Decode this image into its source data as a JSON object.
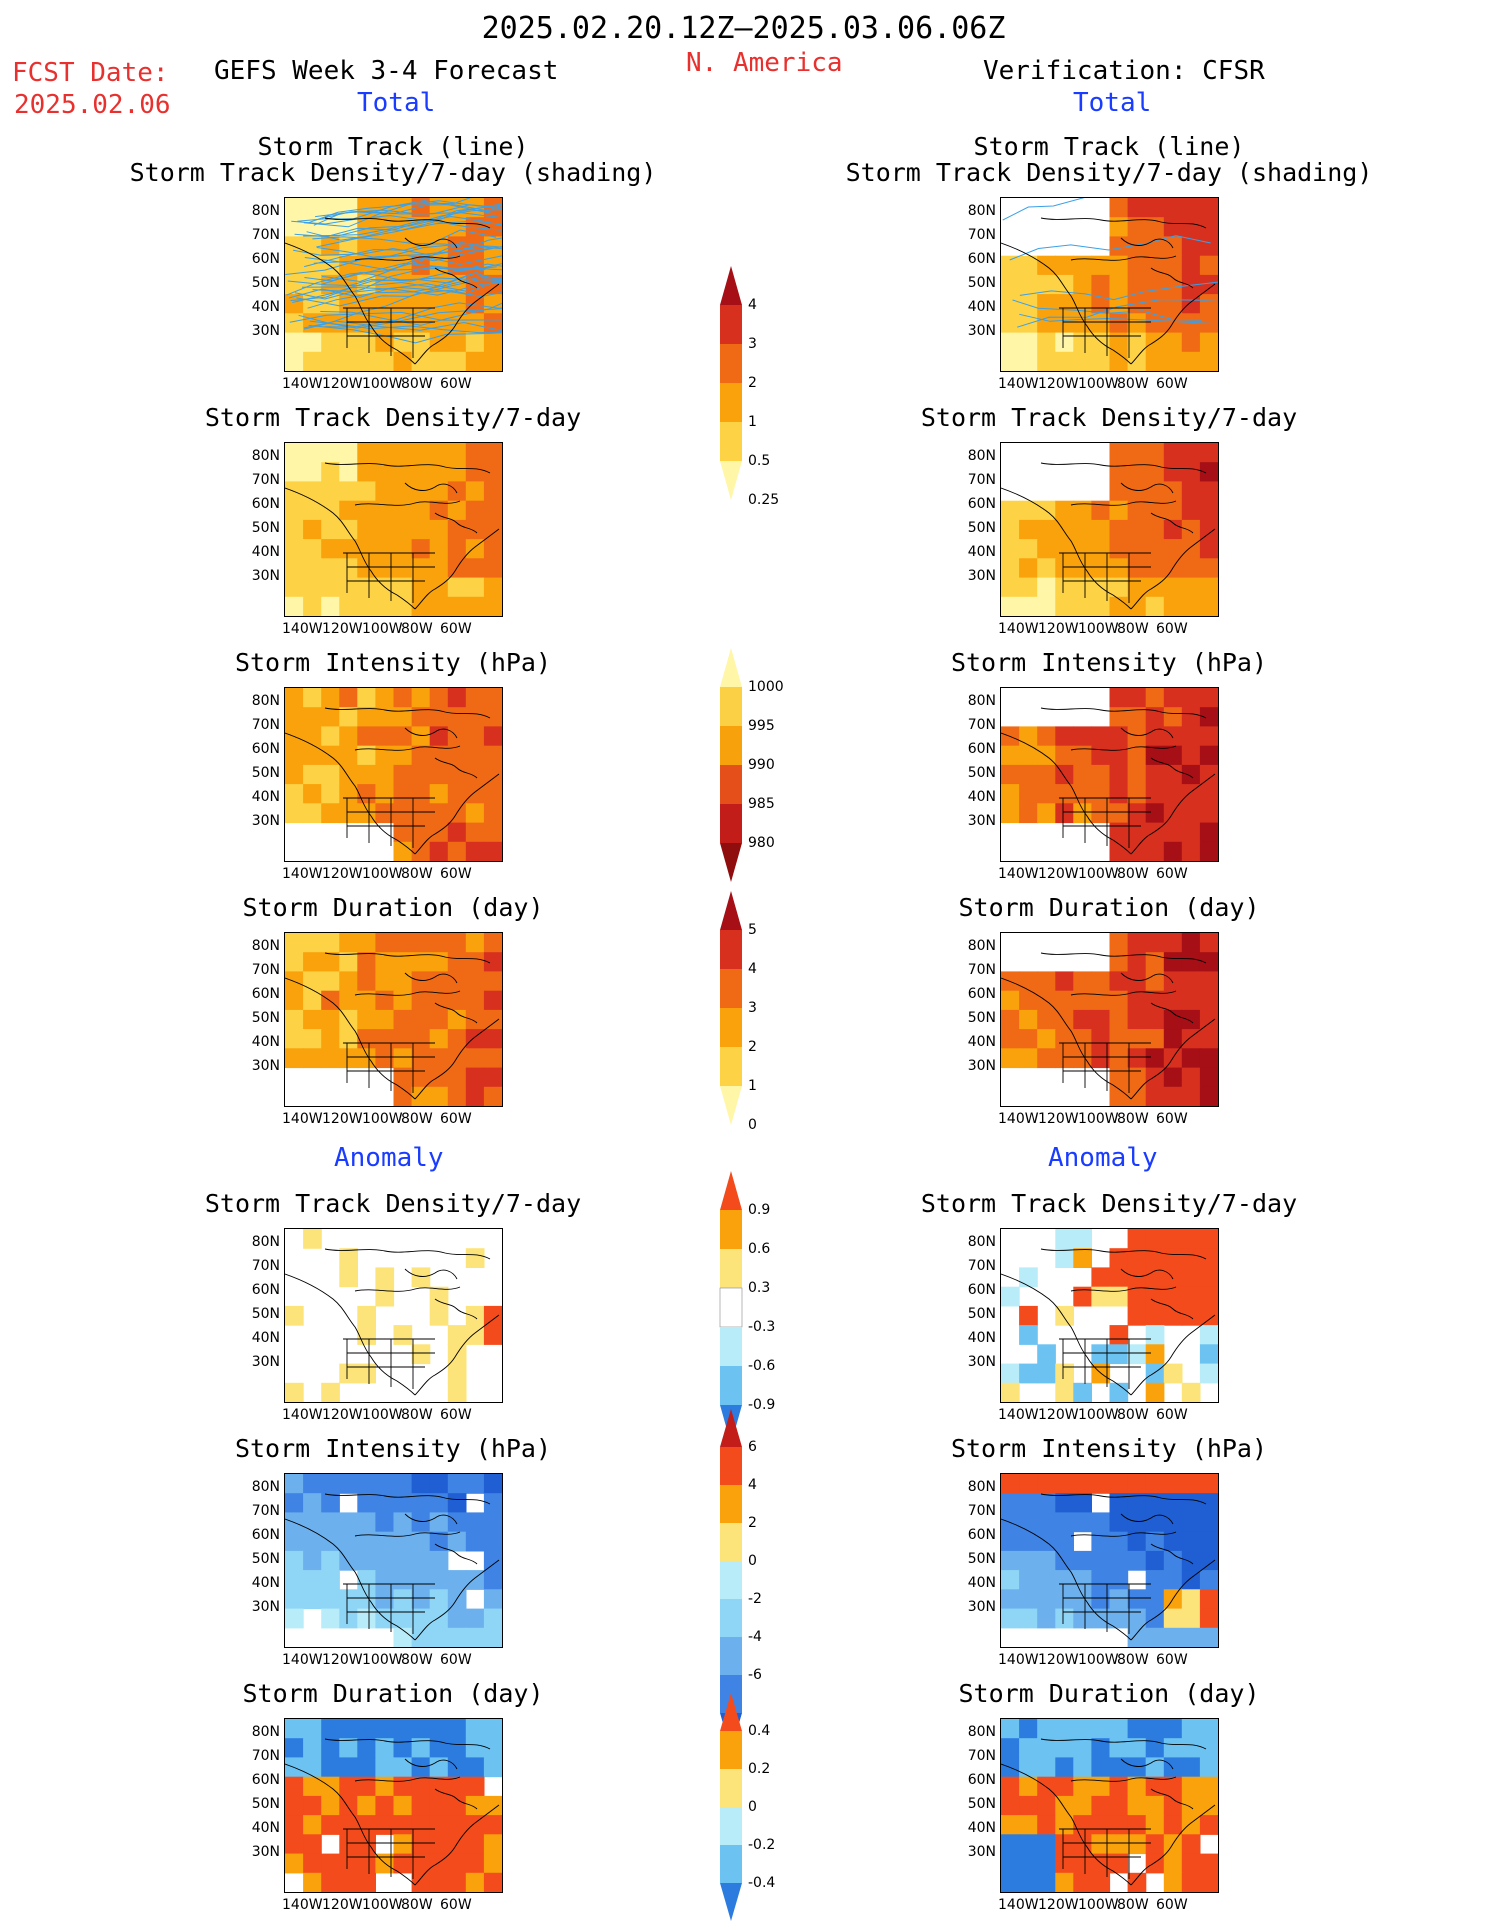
{
  "header": {
    "period": "2025.02.20.12Z—2025.03.06.06Z",
    "fcst_date_label": "FCST Date:",
    "fcst_date_value": "2025.02.06",
    "forecast_title": "GEFS Week 3-4 Forecast",
    "region": "N. America",
    "verification": "Verification: CFSR"
  },
  "sections": {
    "total_label": "Total",
    "anomaly_label": "Anomaly"
  },
  "panel_titles": {
    "track_line": "Storm Track (line)",
    "track_shading": "Storm Track Density/7-day (shading)",
    "density": "Storm Track Density/7-day",
    "intensity": "Storm Intensity (hPa)",
    "duration": "Storm Duration (day)"
  },
  "axes": {
    "lat_ticks": [
      "80N",
      "70N",
      "60N",
      "50N",
      "40N",
      "30N"
    ],
    "lon_ticks": [
      "140W",
      "120W",
      "100W",
      "80W",
      "60W"
    ]
  },
  "colorbars": {
    "density_total": {
      "labels": [
        "4",
        "3",
        "2",
        "1",
        "0.5",
        "0.25"
      ],
      "colors": [
        "#a50f15",
        "#d7301f",
        "#f06a16",
        "#f9a20c",
        "#fdd245",
        "#fff6a8"
      ]
    },
    "intensity_total": {
      "labels": [
        "1000",
        "995",
        "990",
        "985",
        "980"
      ],
      "colors": [
        "#fff6a8",
        "#fbd045",
        "#f7a10d",
        "#e5501a",
        "#c21d18",
        "#8f0d0d"
      ]
    },
    "duration_total": {
      "labels": [
        "5",
        "4",
        "3",
        "2",
        "1",
        "0"
      ],
      "colors": [
        "#a50f15",
        "#d7301f",
        "#f06a16",
        "#f9a20c",
        "#fdd245",
        "#fff6a8"
      ]
    },
    "density_anom": {
      "labels": [
        "0.9",
        "0.6",
        "0.3",
        "-0.3",
        "-0.6",
        "-0.9"
      ],
      "colors": [
        "#f34b1c",
        "#f9a20c",
        "#fde47a",
        "#ffffff",
        "#b8ecf8",
        "#6cc3f2",
        "#2c7ce0"
      ]
    },
    "intensity_anom": {
      "labels": [
        "6",
        "4",
        "2",
        "0",
        "-2",
        "-4",
        "-6"
      ],
      "colors": [
        "#c21d18",
        "#f34b1c",
        "#f9a20c",
        "#fde47a",
        "#b8ecf8",
        "#8fd6f6",
        "#6cb1ee",
        "#3f84e4",
        "#1f5fd3"
      ]
    },
    "duration_anom": {
      "labels": [
        "0.4",
        "0.2",
        "0",
        "-0.2",
        "-0.4"
      ],
      "colors": [
        "#f34b1c",
        "#f9a20c",
        "#fde47a",
        "#b8ecf8",
        "#6cc3f2",
        "#2c7ce0"
      ]
    }
  }
}
